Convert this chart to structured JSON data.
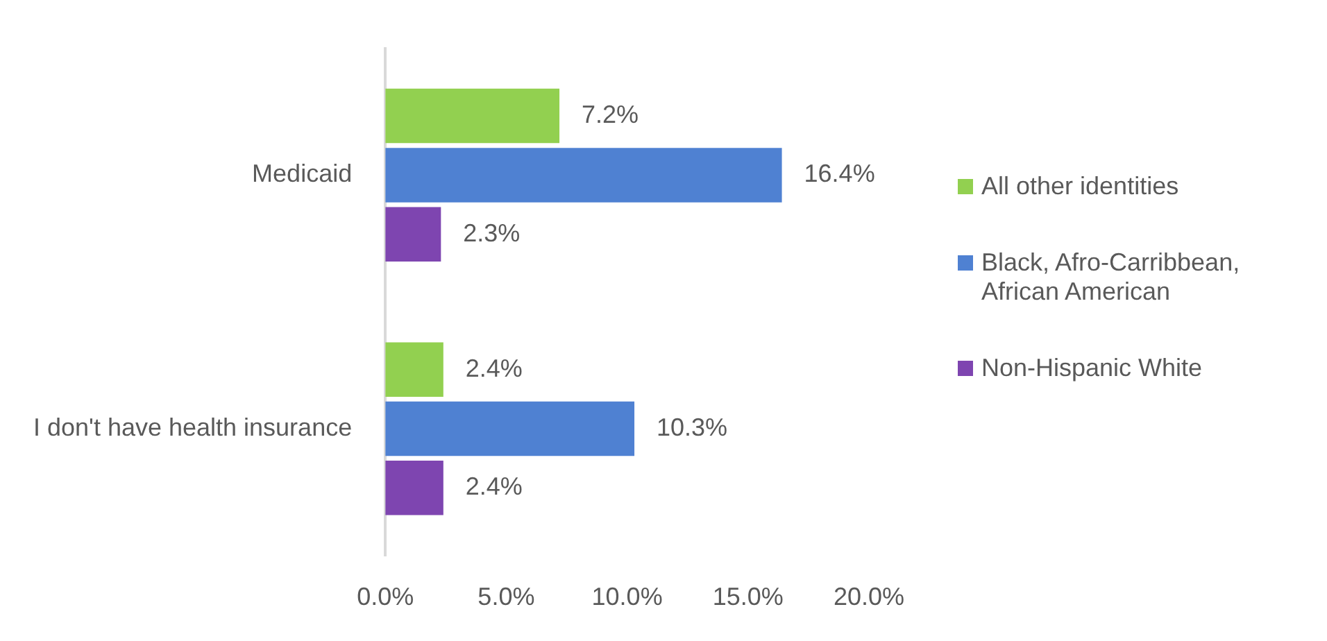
{
  "chart_data": {
    "type": "bar",
    "orientation": "horizontal",
    "categories": [
      "Medicaid",
      "I don't have health insurance"
    ],
    "series": [
      {
        "name": "All other identities",
        "color": "#92d050",
        "values": [
          7.2,
          2.4
        ]
      },
      {
        "name": "Black, Afro-Carribbean, African American",
        "color": "#4f81d2",
        "values": [
          16.4,
          10.3
        ]
      },
      {
        "name": "Non-Hispanic White",
        "color": "#7e45b0",
        "values": [
          2.3,
          2.4
        ]
      }
    ],
    "xlim": [
      0,
      20
    ],
    "xticks": [
      {
        "value": 0,
        "label": "0.0%"
      },
      {
        "value": 5,
        "label": "5.0%"
      },
      {
        "value": 10,
        "label": "10.0%"
      },
      {
        "value": 15,
        "label": "15.0%"
      },
      {
        "value": 20,
        "label": "20.0%"
      }
    ],
    "value_labels": [
      [
        "7.2%",
        "2.4%"
      ],
      [
        "16.4%",
        "10.3%"
      ],
      [
        "2.3%",
        "2.4%"
      ]
    ],
    "grid": false,
    "legend": "right"
  }
}
